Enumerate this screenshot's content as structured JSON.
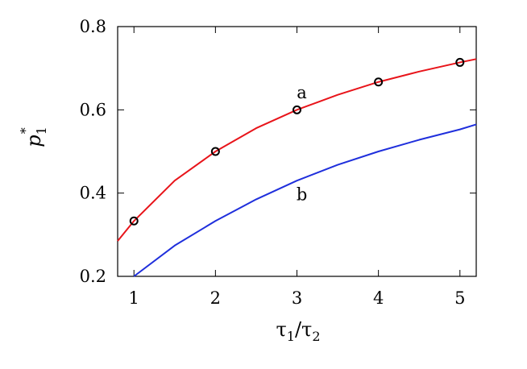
{
  "chart_data": {
    "type": "line",
    "xlim": [
      0.8,
      5.2
    ],
    "ylim": [
      0.2,
      0.8
    ],
    "x_ticks": [
      1,
      2,
      3,
      4,
      5
    ],
    "y_ticks": [
      0.2,
      0.4,
      0.6,
      0.8
    ],
    "x_tick_labels": [
      "1",
      "2",
      "3",
      "4",
      "5"
    ],
    "y_tick_labels": [
      "0.2",
      "0.4",
      "0.6",
      "0.8"
    ],
    "xlabel": "τ1/τ2",
    "ylabel": "p1*",
    "grid": false,
    "series": [
      {
        "name": "a",
        "color": "#e8141a",
        "x": [
          0.8,
          1.0,
          1.5,
          2.0,
          2.5,
          3.0,
          3.5,
          4.0,
          4.5,
          5.0,
          5.2
        ],
        "values": [
          0.285,
          0.333,
          0.43,
          0.5,
          0.556,
          0.6,
          0.636,
          0.667,
          0.692,
          0.714,
          0.722
        ]
      },
      {
        "name": "b",
        "color": "#1f2fdc",
        "x": [
          1.0,
          1.5,
          2.0,
          2.5,
          3.0,
          3.5,
          4.0,
          4.5,
          5.0,
          5.2
        ],
        "values": [
          0.2,
          0.274,
          0.333,
          0.385,
          0.43,
          0.468,
          0.5,
          0.528,
          0.553,
          0.565
        ]
      }
    ],
    "markers": {
      "series": "a",
      "x": [
        1,
        2,
        3,
        4,
        5
      ],
      "values": [
        0.333,
        0.5,
        0.6,
        0.667,
        0.714
      ]
    },
    "annotations": [
      {
        "text": "a",
        "x": 3.06,
        "y": 0.628
      },
      {
        "text": "b",
        "x": 3.06,
        "y": 0.383
      }
    ]
  }
}
